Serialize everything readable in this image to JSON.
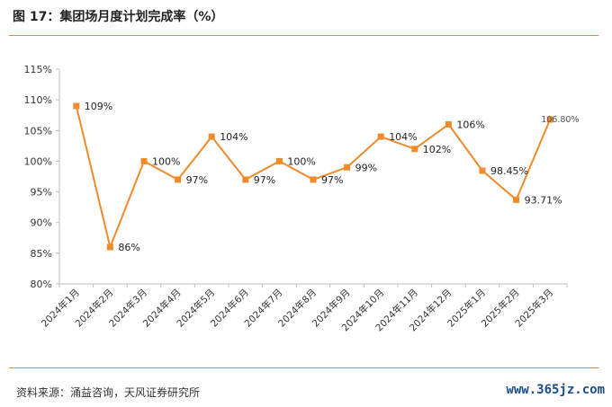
{
  "figure": {
    "title": "图 17：集团场月度计划完成率（%）",
    "source": "资料来源：涌益咨询，天风证券研究所",
    "watermark": "www.365jz.com"
  },
  "colors": {
    "series": "#f08a2b",
    "rule": "#e5873a",
    "axis": "#bfbfbf",
    "text": "#333333"
  },
  "chart_data": {
    "type": "line",
    "title": "集团场月度计划完成率（%）",
    "xlabel": "",
    "ylabel": "",
    "categories": [
      "2024年1月",
      "2024年2月",
      "2024年3月",
      "2024年4月",
      "2024年5月",
      "2024年6月",
      "2024年7月",
      "2024年8月",
      "2024年9月",
      "2024年10月",
      "2024年11月",
      "2024年12月",
      "2025年1月",
      "2025年2月",
      "2025年3月"
    ],
    "series": [
      {
        "name": "",
        "values": [
          109,
          86,
          100,
          97,
          104,
          97,
          100,
          97,
          99,
          104,
          102,
          106,
          98.45,
          93.71,
          106.8
        ],
        "labels": [
          "109%",
          "86%",
          "100%",
          "97%",
          "104%",
          "97%",
          "100%",
          "97%",
          "99%",
          "104%",
          "102%",
          "106%",
          "98.45%",
          "93.71%",
          "106.80%"
        ]
      }
    ],
    "ylim": [
      80,
      115
    ],
    "yticks": [
      80,
      85,
      90,
      95,
      100,
      105,
      110,
      115
    ],
    "ytick_labels": [
      "80%",
      "85%",
      "90%",
      "95%",
      "100%",
      "105%",
      "110%",
      "115%"
    ],
    "grid": false,
    "legend": "none"
  }
}
